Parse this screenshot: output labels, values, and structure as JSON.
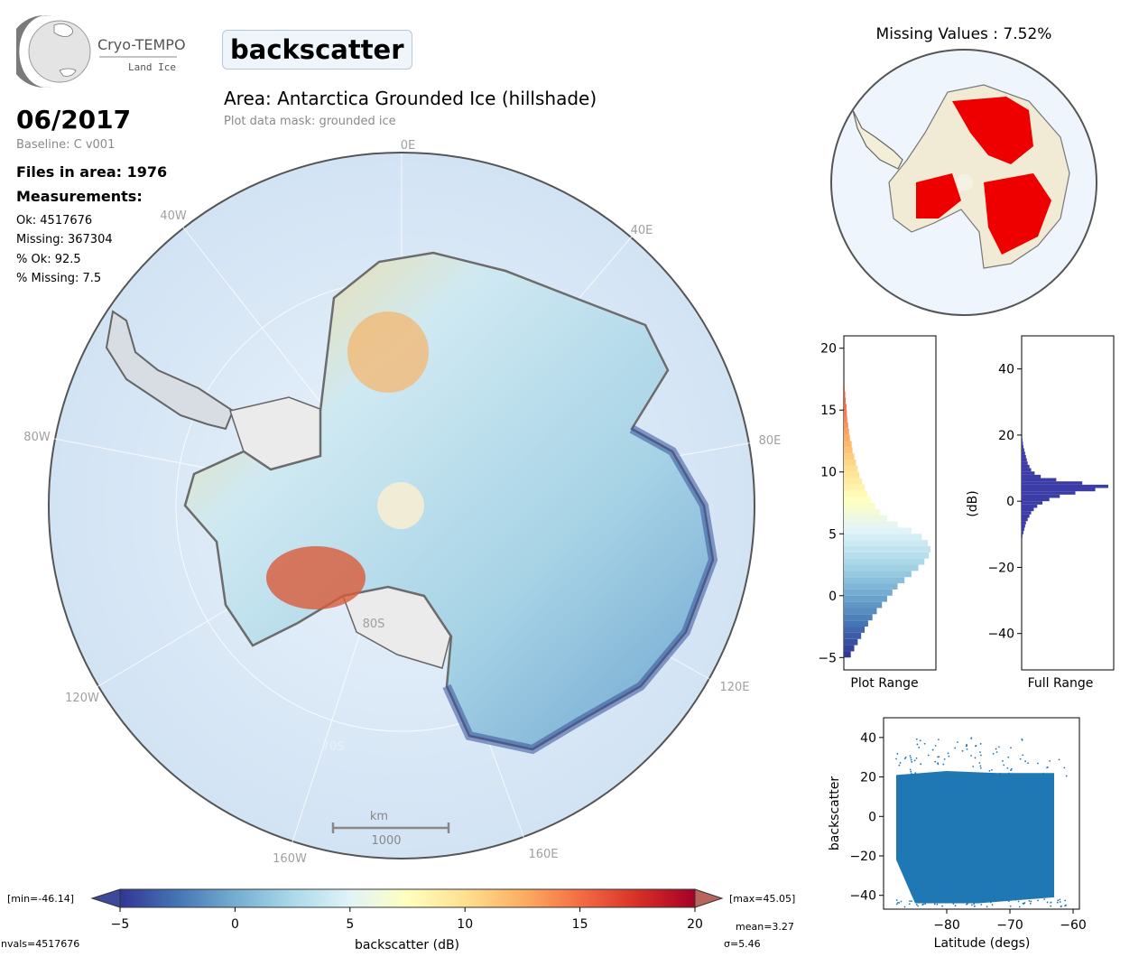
{
  "logo": {
    "name": "Cryo-TEMPO",
    "sub": "Land Ice"
  },
  "variable_title": "backscatter",
  "date": "06/2017",
  "baseline": "Baseline: C v001",
  "area_title": "Area: Antarctica Grounded Ice (hillshade)",
  "mask_text": "Plot data mask: grounded ice",
  "files_in_area": "Files in area: 1976",
  "measurements_heading": "Measurements:",
  "stats": {
    "ok": "Ok: 4517676",
    "missing": "Missing: 367304",
    "pct_ok": "% Ok: 92.5",
    "pct_missing": "% Missing: 7.5"
  },
  "map": {
    "lon_labels": {
      "e0": "0E",
      "e40": "40E",
      "e80": "80E",
      "e120": "120E",
      "e160": "160E",
      "w40": "40W",
      "w80": "80W",
      "w120": "120W",
      "w160": "160W"
    },
    "lat_labels": {
      "s80": "80S",
      "s70": "70S"
    },
    "scalebar_unit": "km",
    "scalebar_value": "1000"
  },
  "missing_title": "Missing Values : 7.52%",
  "colorbar": {
    "min_label": "[min=-46.14]",
    "max_label": "[max=45.05]",
    "ticks": [
      "−5",
      "0",
      "5",
      "10",
      "15",
      "20"
    ],
    "label": "backscatter (dB)",
    "mean": "mean=3.27",
    "sigma": "σ=5.46",
    "nvals": "nvals=4517676",
    "colors": [
      "#313695",
      "#4575b4",
      "#74add1",
      "#abd9e9",
      "#e0f3f8",
      "#ffffbf",
      "#fee090",
      "#fdae61",
      "#f46d43",
      "#d73027",
      "#a50026"
    ]
  },
  "hist_plot_range": {
    "xlabel": "Plot Range",
    "yticks": [
      "20",
      "15",
      "10",
      "5",
      "0",
      "−5"
    ],
    "ylim": [
      -6,
      21
    ],
    "bins": [
      [
        -5,
        0.08
      ],
      [
        -4.5,
        0.12
      ],
      [
        -4,
        0.16
      ],
      [
        -3.5,
        0.2
      ],
      [
        -3,
        0.24
      ],
      [
        -2.5,
        0.28
      ],
      [
        -2,
        0.33
      ],
      [
        -1.5,
        0.38
      ],
      [
        -1,
        0.44
      ],
      [
        -0.5,
        0.5
      ],
      [
        0,
        0.56
      ],
      [
        0.5,
        0.62
      ],
      [
        1,
        0.7
      ],
      [
        1.5,
        0.78
      ],
      [
        2,
        0.86
      ],
      [
        2.5,
        0.93
      ],
      [
        3,
        0.98
      ],
      [
        3.5,
        1.0
      ],
      [
        4,
        0.97
      ],
      [
        4.5,
        0.9
      ],
      [
        5,
        0.78
      ],
      [
        5.5,
        0.62
      ],
      [
        6,
        0.5
      ],
      [
        6.5,
        0.42
      ],
      [
        7,
        0.36
      ],
      [
        7.5,
        0.31
      ],
      [
        8,
        0.27
      ],
      [
        8.5,
        0.24
      ],
      [
        9,
        0.21
      ],
      [
        9.5,
        0.18
      ],
      [
        10,
        0.16
      ],
      [
        10.5,
        0.14
      ],
      [
        11,
        0.12
      ],
      [
        11.5,
        0.1
      ],
      [
        12,
        0.09
      ],
      [
        12.5,
        0.07
      ],
      [
        13,
        0.06
      ],
      [
        13.5,
        0.05
      ],
      [
        14,
        0.04
      ],
      [
        14.5,
        0.035
      ],
      [
        15,
        0.03
      ],
      [
        15.5,
        0.02
      ],
      [
        16,
        0.015
      ],
      [
        16.5,
        0.01
      ]
    ]
  },
  "hist_full_range": {
    "xlabel": "Full Range",
    "ylabel": "(dB)",
    "yticks": [
      "40",
      "20",
      "0",
      "−20",
      "−40"
    ],
    "ylim": [
      -51,
      50
    ],
    "color": "#3c3ca8",
    "bins": [
      [
        -11,
        0.01
      ],
      [
        -10,
        0.02
      ],
      [
        -9,
        0.03
      ],
      [
        -8,
        0.04
      ],
      [
        -7,
        0.05
      ],
      [
        -6,
        0.07
      ],
      [
        -5,
        0.09
      ],
      [
        -4,
        0.11
      ],
      [
        -3,
        0.14
      ],
      [
        -2,
        0.18
      ],
      [
        -1,
        0.24
      ],
      [
        0,
        0.32
      ],
      [
        1,
        0.44
      ],
      [
        2,
        0.62
      ],
      [
        3,
        0.85
      ],
      [
        4,
        1.0
      ],
      [
        5,
        0.7
      ],
      [
        6,
        0.4
      ],
      [
        7,
        0.22
      ],
      [
        8,
        0.15
      ],
      [
        9,
        0.11
      ],
      [
        10,
        0.09
      ],
      [
        11,
        0.07
      ],
      [
        12,
        0.06
      ],
      [
        13,
        0.05
      ],
      [
        14,
        0.04
      ],
      [
        15,
        0.03
      ],
      [
        16,
        0.02
      ],
      [
        17,
        0.015
      ],
      [
        18,
        0.01
      ]
    ]
  },
  "scatter": {
    "xlabel": "Latitude (degs)",
    "ylabel": "backscatter",
    "xticks": [
      "−80",
      "−70",
      "−60"
    ],
    "yticks": [
      "40",
      "20",
      "0",
      "−20",
      "−40"
    ],
    "xlim": [
      -90,
      -59
    ],
    "ylim": [
      -47,
      50
    ],
    "color": "#1f77b4"
  }
}
